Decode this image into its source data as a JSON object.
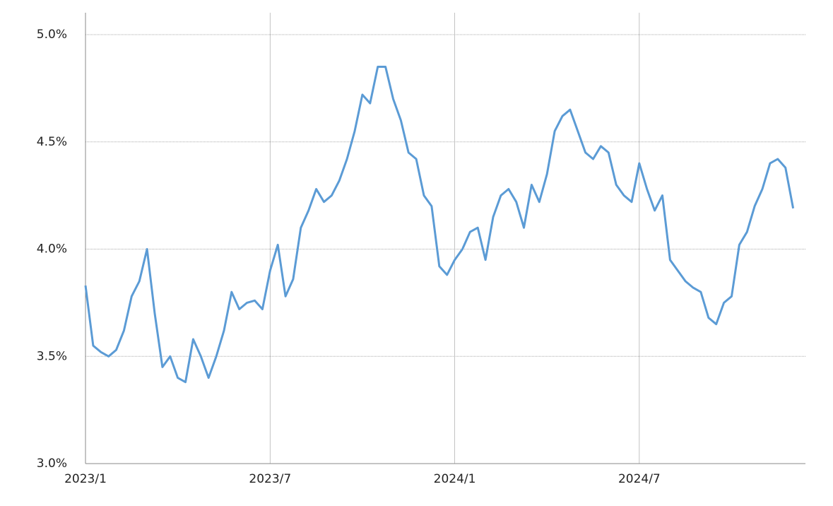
{
  "chart_data": {
    "type": "line",
    "x": [
      0,
      0.25,
      0.5,
      0.75,
      1,
      1.25,
      1.5,
      1.75,
      2,
      2.25,
      2.5,
      2.75,
      3,
      3.25,
      3.5,
      3.75,
      4,
      4.25,
      4.5,
      4.75,
      5,
      5.25,
      5.5,
      5.75,
      6,
      6.25,
      6.5,
      6.75,
      7,
      7.25,
      7.5,
      7.75,
      8,
      8.25,
      8.5,
      8.75,
      9,
      9.25,
      9.5,
      9.75,
      10,
      10.25,
      10.5,
      10.75,
      11,
      11.25,
      11.5,
      11.75,
      12,
      12.25,
      12.5,
      12.75,
      13,
      13.25,
      13.5,
      13.75,
      14,
      14.25,
      14.5,
      14.75,
      15,
      15.25,
      15.5,
      15.75,
      16,
      16.25,
      16.5,
      16.75,
      17,
      17.25,
      17.5,
      17.75,
      18,
      18.25,
      18.5,
      18.75,
      19,
      19.25,
      19.5,
      19.75,
      20,
      20.25,
      20.5,
      20.75,
      21,
      21.25,
      21.5,
      21.75,
      22,
      22.25,
      22.5,
      22.75,
      23
    ],
    "series": [
      {
        "color": "#5b9bd5",
        "values": [
          3.83,
          3.55,
          3.52,
          3.5,
          3.53,
          3.62,
          3.78,
          3.85,
          4.0,
          3.7,
          3.45,
          3.5,
          3.4,
          3.38,
          3.58,
          3.5,
          3.4,
          3.5,
          3.62,
          3.8,
          3.72,
          3.75,
          3.76,
          3.72,
          3.9,
          4.02,
          3.78,
          3.86,
          4.1,
          4.18,
          4.28,
          4.22,
          4.25,
          4.32,
          4.42,
          4.55,
          4.72,
          4.68,
          4.85,
          4.85,
          4.7,
          4.6,
          4.45,
          4.42,
          4.25,
          4.2,
          3.92,
          3.88,
          3.95,
          4.0,
          4.08,
          4.1,
          3.95,
          4.15,
          4.25,
          4.28,
          4.22,
          4.1,
          4.3,
          4.22,
          4.35,
          4.55,
          4.62,
          4.65,
          4.55,
          4.45,
          4.42,
          4.48,
          4.45,
          4.3,
          4.25,
          4.22,
          4.4,
          4.28,
          4.18,
          4.25,
          3.95,
          3.9,
          3.85,
          3.82,
          3.8,
          3.68,
          3.65,
          3.75,
          3.78,
          4.02,
          4.08,
          4.2,
          4.28,
          4.4,
          4.42,
          4.38,
          4.19
        ]
      }
    ],
    "xlim": [
      0,
      23.4
    ],
    "xticks": [
      {
        "value": 0,
        "label": "2023/1"
      },
      {
        "value": 6,
        "label": "2023/7"
      },
      {
        "value": 12,
        "label": "2024/1"
      },
      {
        "value": 18,
        "label": "2024/7"
      }
    ],
    "ylim": [
      3.0,
      5.0
    ],
    "yticks": [
      {
        "value": 3.0,
        "label": "3.0%"
      },
      {
        "value": 3.5,
        "label": "3.5%"
      },
      {
        "value": 4.0,
        "label": "4.0%"
      },
      {
        "value": 4.5,
        "label": "4.5%"
      },
      {
        "value": 5.0,
        "label": "5.0%"
      }
    ],
    "grid": true
  }
}
